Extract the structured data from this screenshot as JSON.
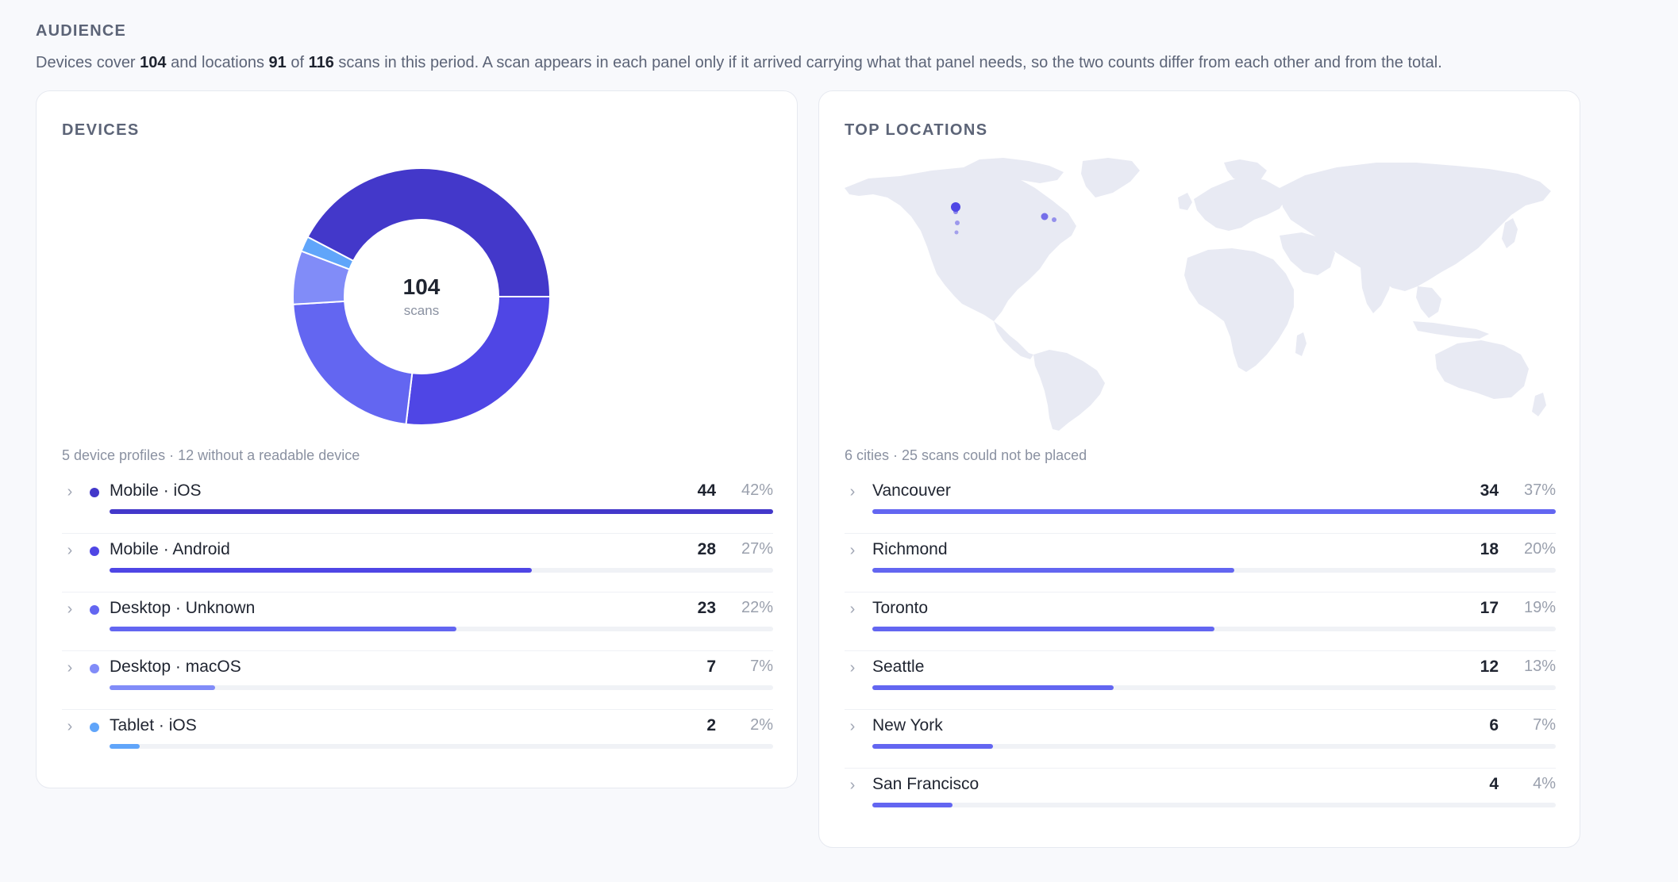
{
  "audience": {
    "title": "AUDIENCE",
    "subtitle": {
      "p1": "Devices cover ",
      "devices_count": "104",
      "p2": " and locations ",
      "locations_count": "91",
      "p3": " of ",
      "total": "116",
      "p4": " scans in this period. A scan appears in each panel only if it arrived carrying what that panel needs, so the two counts differ from each other and from the total."
    }
  },
  "devices": {
    "title": "DEVICES",
    "total": "104",
    "unit": "scans",
    "caption": "5 device profiles · 12 without a readable device",
    "items": [
      {
        "label": "Mobile · iOS",
        "count": "44",
        "pct": "42%",
        "value": 44,
        "color": "#4338ca"
      },
      {
        "label": "Mobile · Android",
        "count": "28",
        "pct": "27%",
        "value": 28,
        "color": "#4f46e5"
      },
      {
        "label": "Desktop · Unknown",
        "count": "23",
        "pct": "22%",
        "value": 23,
        "color": "#6366f1"
      },
      {
        "label": "Desktop · macOS",
        "count": "7",
        "pct": "7%",
        "value": 7,
        "color": "#818cf8"
      },
      {
        "label": "Tablet · iOS",
        "count": "2",
        "pct": "2%",
        "value": 2,
        "color": "#60a5fa"
      }
    ]
  },
  "locations": {
    "title": "TOP LOCATIONS",
    "caption": "6 cities · 25 scans could not be placed",
    "bar_color": "#6366f1",
    "items": [
      {
        "label": "Vancouver",
        "count": "34",
        "pct": "37%",
        "value": 34
      },
      {
        "label": "Richmond",
        "count": "18",
        "pct": "20%",
        "value": 18
      },
      {
        "label": "Toronto",
        "count": "17",
        "pct": "19%",
        "value": 17
      },
      {
        "label": "Seattle",
        "count": "12",
        "pct": "13%",
        "value": 12
      },
      {
        "label": "New York",
        "count": "6",
        "pct": "7%",
        "value": 6
      },
      {
        "label": "San Francisco",
        "count": "4",
        "pct": "4%",
        "value": 4
      }
    ]
  },
  "map": {
    "land_color": "#e8eaf3",
    "marker_color": "#4f46e5"
  }
}
